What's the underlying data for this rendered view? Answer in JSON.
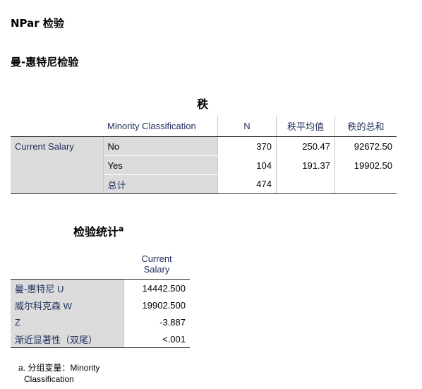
{
  "header": {
    "title": "NPar 检验",
    "subtitle": "曼-惠特尼检验"
  },
  "ranks": {
    "title": "秩",
    "columns": [
      "Minority Classification",
      "N",
      "秩平均值",
      "秩的总和"
    ],
    "variable": "Current Salary",
    "rows": [
      {
        "group": "No",
        "n": "370",
        "mean_rank": "250.47",
        "sum_ranks": "92672.50"
      },
      {
        "group": "Yes",
        "n": "104",
        "mean_rank": "191.37",
        "sum_ranks": "19902.50"
      },
      {
        "group": "总计",
        "n": "474",
        "mean_rank": "",
        "sum_ranks": ""
      }
    ]
  },
  "test_stats": {
    "title": "检验统计",
    "superscript": "a",
    "column_line1": "Current",
    "column_line2": "Salary",
    "rows": [
      {
        "label": "曼-惠特尼 U",
        "value": "14442.500"
      },
      {
        "label": "威尔科克森 W",
        "value": "19902.500"
      },
      {
        "label": "Z",
        "value": "-3.887"
      },
      {
        "label": "渐近显著性（双尾）",
        "value": "<.001"
      }
    ],
    "footnote_line1": "a. 分组变量：Minority",
    "footnote_line2": "Classification"
  }
}
